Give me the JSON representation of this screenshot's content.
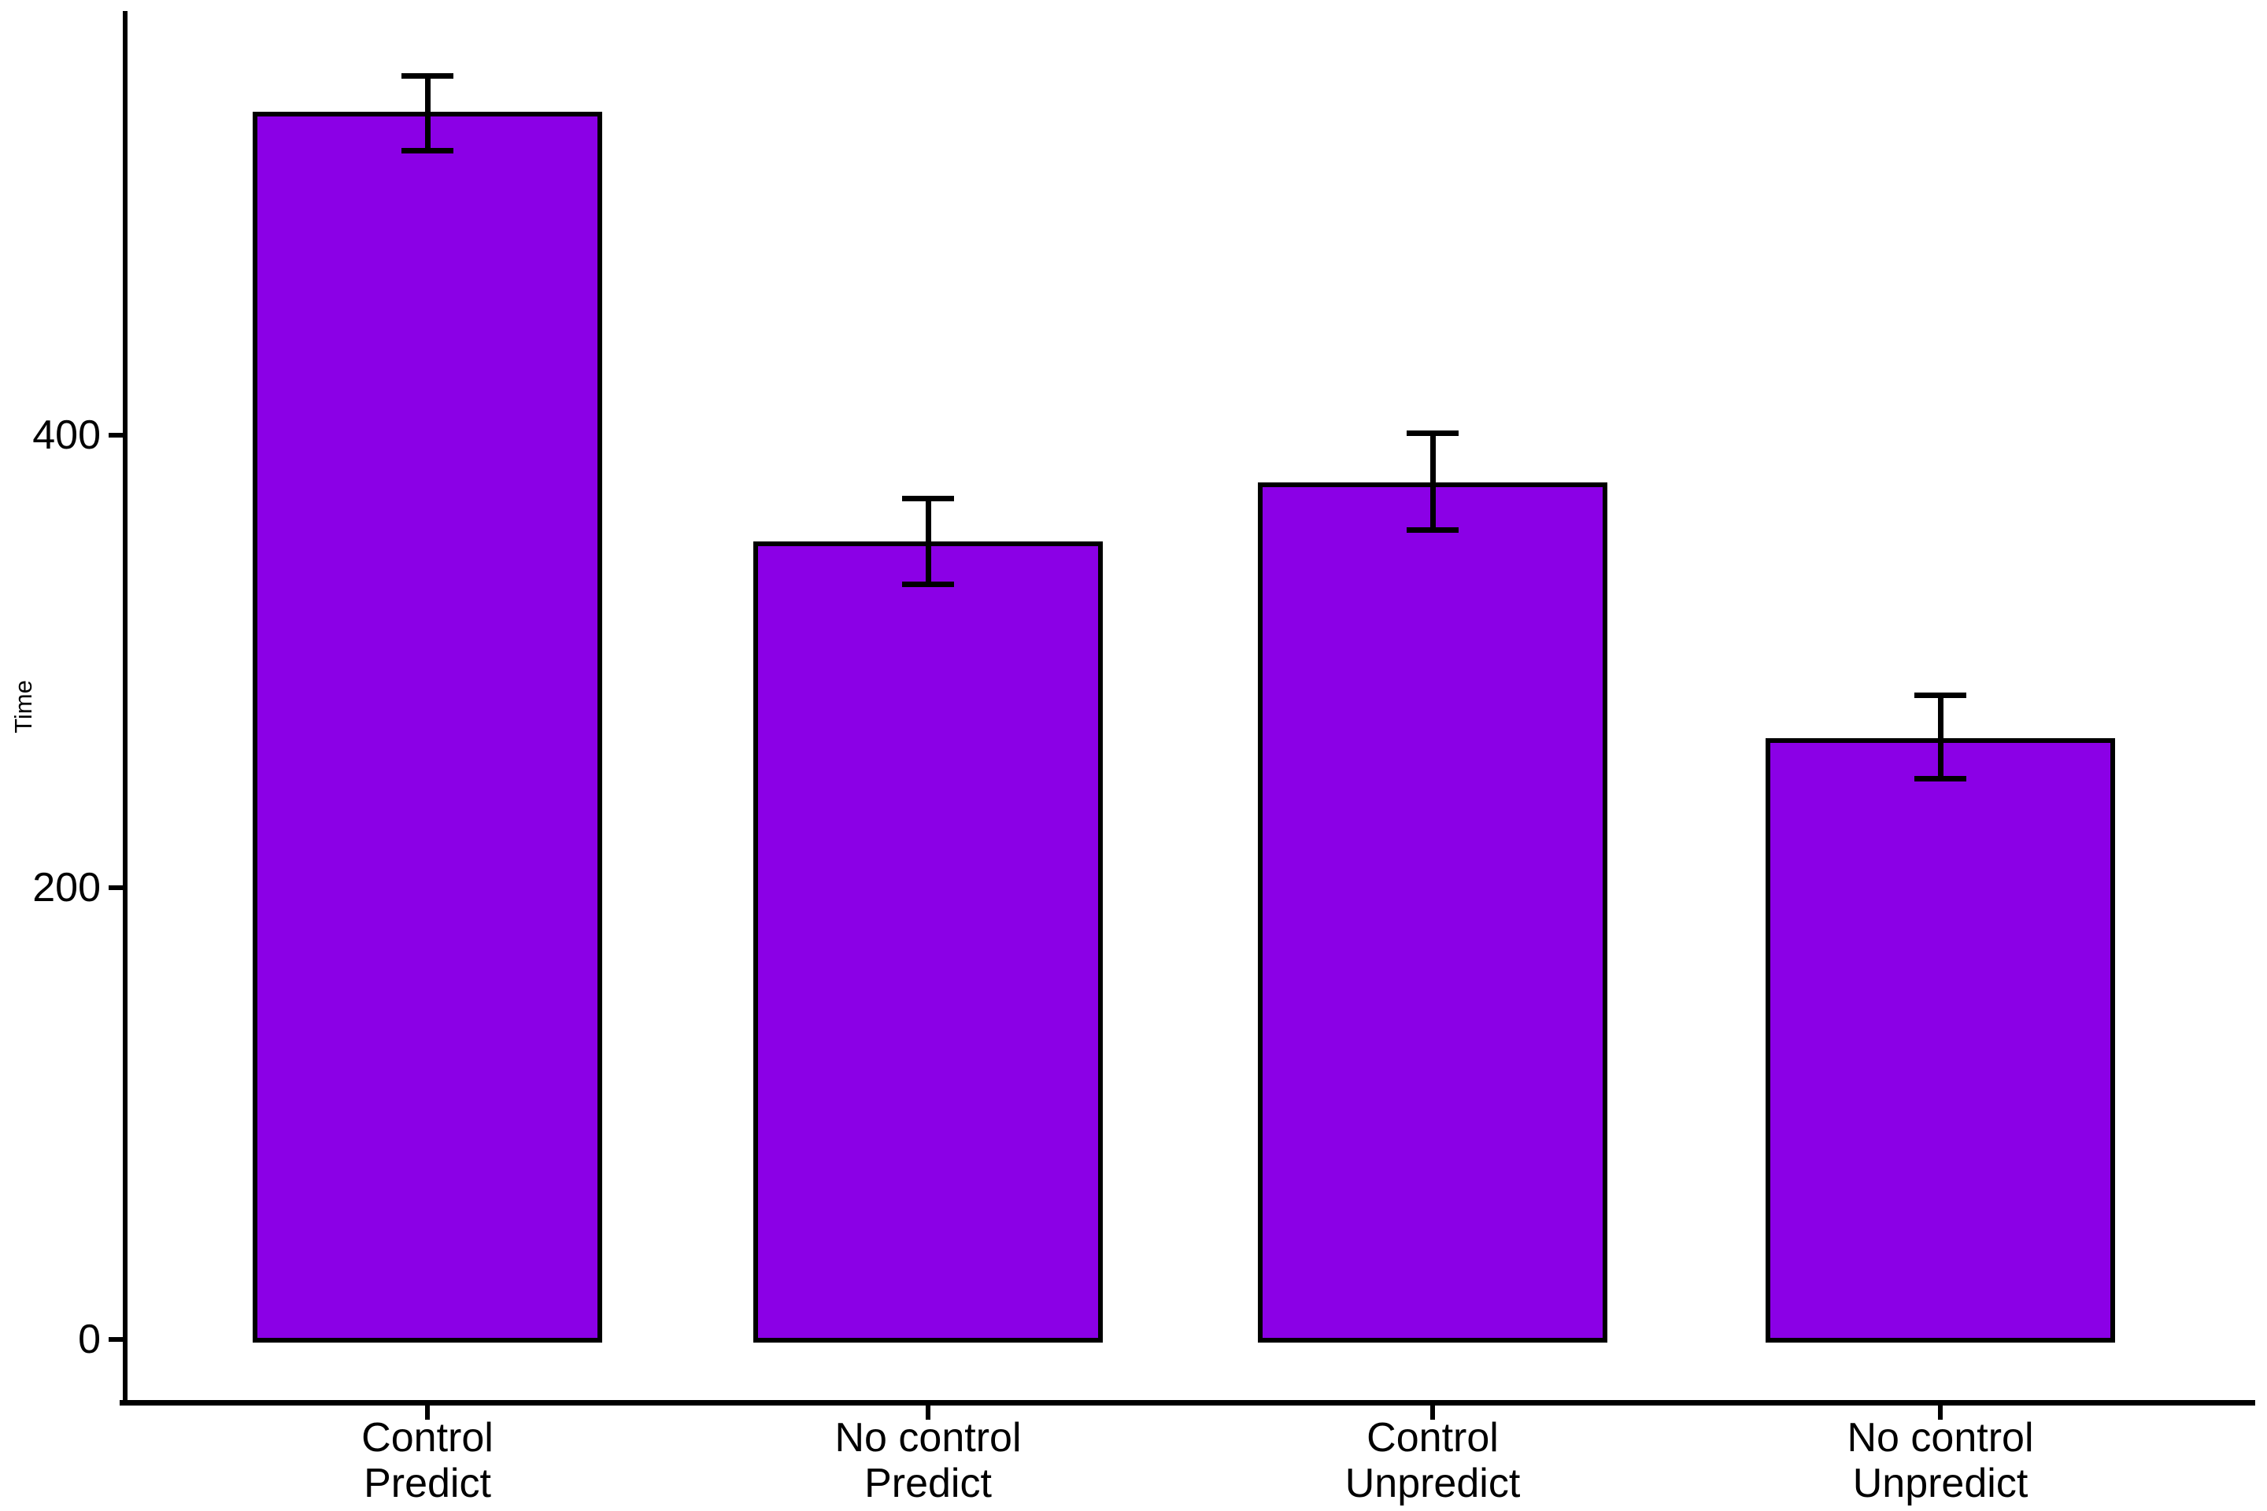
{
  "chart_data": {
    "type": "bar",
    "title": "",
    "xlabel": "",
    "ylabel": "Time",
    "categories": [
      [
        "Control",
        "Predict"
      ],
      [
        "No control",
        "Predict"
      ],
      [
        "Control",
        "Unpredict"
      ],
      [
        "No control",
        "Unpredict"
      ]
    ],
    "values": [
      543,
      353,
      379,
      266
    ],
    "error_upper": [
      559,
      372,
      401,
      285
    ],
    "error_lower": [
      526,
      334,
      358,
      248
    ],
    "yticks": [
      0,
      200,
      400
    ],
    "ylim": [
      0,
      588
    ],
    "grid": "off",
    "legend": "none",
    "bar_fill_color": "#8B00E6",
    "bar_stroke_color": "#000000",
    "axis_color": "#000000"
  }
}
